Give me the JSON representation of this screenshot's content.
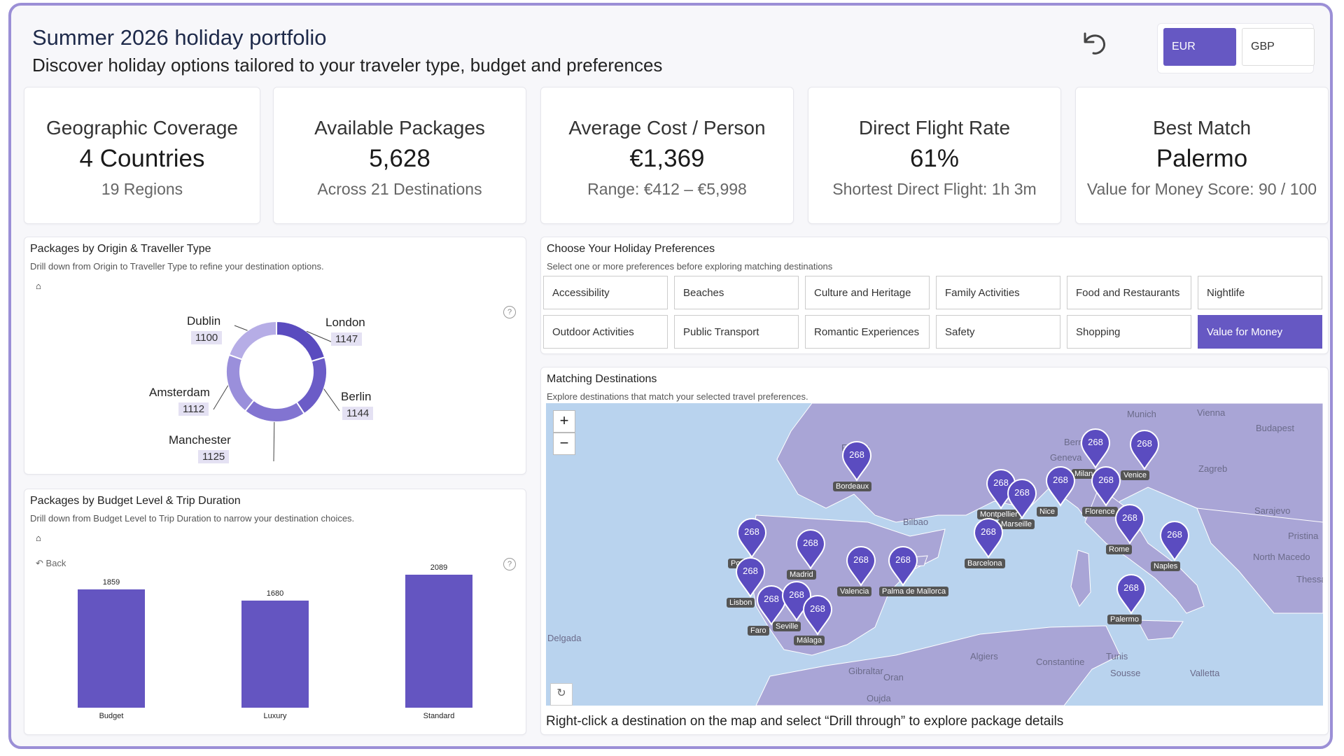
{
  "header": {
    "title": "Summer 2026 holiday portfolio",
    "subtitle": "Discover holiday options tailored to your traveler type, budget and preferences"
  },
  "currency": {
    "options": [
      "EUR",
      "GBP"
    ],
    "selected": "EUR"
  },
  "kpis": [
    {
      "label": "Geographic Coverage",
      "value": "4 Countries",
      "sub": "19 Regions"
    },
    {
      "label": "Available Packages",
      "value": "5,628",
      "sub": "Across 21 Destinations"
    },
    {
      "label": "Average Cost / Person",
      "value": "€1,369",
      "sub": "Range: €412 – €5,998"
    },
    {
      "label": "Direct Flight Rate",
      "value": "61%",
      "sub": "Shortest Direct Flight: 1h 3m"
    },
    {
      "label": "Best Match",
      "value": "Palermo",
      "sub": "Value for Money Score: 90 / 100"
    }
  ],
  "origin_panel": {
    "title": "Packages by Origin & Traveller Type",
    "subtitle": "Drill down from Origin to Traveller Type to refine your destination options."
  },
  "budget_panel": {
    "title": "Packages by Budget Level & Trip Duration",
    "subtitle": "Drill down from Budget Level to Trip Duration to narrow your destination choices.",
    "back_label": "Back"
  },
  "chart_data": [
    {
      "type": "pie",
      "donut": true,
      "categories": [
        "London",
        "Berlin",
        "Manchester",
        "Amsterdam",
        "Dublin"
      ],
      "values": [
        1147,
        1144,
        1125,
        1112,
        1100
      ],
      "colors": [
        "#5a4bbf",
        "#6b5cc7",
        "#8274d1",
        "#9a8fdb",
        "#b6ade6"
      ]
    },
    {
      "type": "bar",
      "categories": [
        "Budget",
        "Luxury",
        "Standard"
      ],
      "values": [
        1859,
        1680,
        2089
      ],
      "ylim": [
        0,
        2200
      ],
      "color": "#6455c1"
    }
  ],
  "preferences": {
    "title": "Choose Your Holiday Preferences",
    "subtitle": "Select one or more preferences before exploring matching destinations",
    "items": [
      "Accessibility",
      "Beaches",
      "Culture and Heritage",
      "Family Activities",
      "Food and Restaurants",
      "Nightlife",
      "Outdoor Activities",
      "Public Transport",
      "Romantic Experiences",
      "Safety",
      "Shopping",
      "Value for Money"
    ],
    "selected": "Value for Money"
  },
  "map_panel": {
    "title": "Matching Destinations",
    "subtitle": "Explore destinations that match your selected travel preferences.",
    "zoom_in": "+",
    "zoom_out": "−",
    "footer": "Right-click a destination on the map and select “Drill through” to explore package details",
    "pin_count": "268",
    "pins": [
      "Bordeaux",
      "Milan",
      "Venice",
      "Montpellier",
      "Marseille",
      "Nice",
      "Florence",
      "Barcelona",
      "Porto",
      "Madrid",
      "Valencia",
      "Palma de Mallorca",
      "Rome",
      "Naples",
      "Lisbon",
      "Faro",
      "Seville",
      "Málaga",
      "Palermo"
    ],
    "geo_labels": [
      "France",
      "Bilbao",
      "Budapest",
      "Zagreb",
      "Sarajevo",
      "Algiers",
      "Constantine",
      "Tunis",
      "Sousse",
      "Valletta",
      "Oran",
      "Oujda",
      "Delgada",
      "Gibraltar",
      "North Macedo",
      "Bern",
      "Geneva",
      "Munich",
      "Vienna",
      "Pristina",
      "Thessal"
    ]
  }
}
